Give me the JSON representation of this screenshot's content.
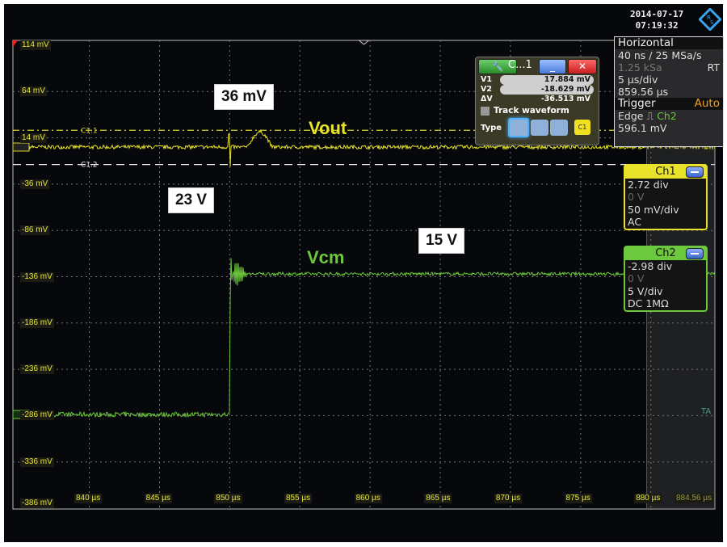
{
  "status": {
    "date": "2014-07-17",
    "time": "07:19:32",
    "logo": "R&S"
  },
  "horizontal": {
    "title": "Horizontal",
    "resolution": "40 ns / 25 MSa/s",
    "record_length": "1.25 kSa",
    "mode": "RT",
    "time_scale": "5 µs/div",
    "position": "859.56 µs"
  },
  "trigger": {
    "title": "Trigger",
    "mode": "Auto",
    "type": "Edge",
    "source": "Ch2",
    "level": "596.1 mV"
  },
  "cursor_dialog": {
    "title": "C...1",
    "v1_label": "V1",
    "v1": "17.884 mV",
    "v2_label": "V2",
    "v2": "-18.629 mV",
    "dv_label": "ΔV",
    "dv": "-36.513 mV",
    "track_label": "Track waveform",
    "track_checked": false,
    "type_label": "Type",
    "source": "C1"
  },
  "channels": [
    {
      "name": "Ch1",
      "position": "2.72 div",
      "offset": "0 V",
      "scale": "50 mV/div",
      "coupling": "AC",
      "color": "#e8e32a"
    },
    {
      "name": "Ch2",
      "position": "-2.98 div",
      "offset": "0 V",
      "scale": "5 V/div",
      "coupling": "DC 1MΩ",
      "color": "#6cc83c"
    }
  ],
  "y_ticks": [
    "114 mV",
    "64 mV",
    "14 mV",
    "-36 mV",
    "-86 mV",
    "-136 mV",
    "-186 mV",
    "-236 mV",
    "-286 mV",
    "-336 mV",
    "-386 mV"
  ],
  "x_ticks": [
    "840 µs",
    "845 µs",
    "850 µs",
    "855 µs",
    "860 µs",
    "865 µs",
    "870 µs",
    "875 µs",
    "880 µs"
  ],
  "x_end": "884.56 µs",
  "cursor_labels": [
    "C1.1",
    "C1.2"
  ],
  "marker_labels": {
    "ch1": "C1",
    "ch2": "C2",
    "trigger": "TA"
  },
  "annotations": {
    "vout_peak": "36 mV",
    "vcm_peak": "23 V",
    "vcm_steady": "15 V",
    "vout": "Vout",
    "vcm": "Vcm"
  },
  "chart_data": {
    "type": "line",
    "x_unit": "µs",
    "xlim": [
      834.56,
      884.56
    ],
    "series": [
      {
        "name": "Vout",
        "channel": "Ch1",
        "unit": "mV",
        "baseline": 0,
        "spike_time": 850,
        "spike_max": 14,
        "spike_min": -21,
        "bump_start": 851.3,
        "bump_end": 853.0,
        "bump_peak": 16
      },
      {
        "name": "Vcm",
        "channel": "Ch2",
        "unit": "V",
        "initial": 0,
        "step_time": 850,
        "peak": 23,
        "final": 15
      }
    ],
    "cursors": {
      "C1.1": 17.884,
      "C1.2": -18.629,
      "unit": "mV"
    },
    "grid": true
  }
}
